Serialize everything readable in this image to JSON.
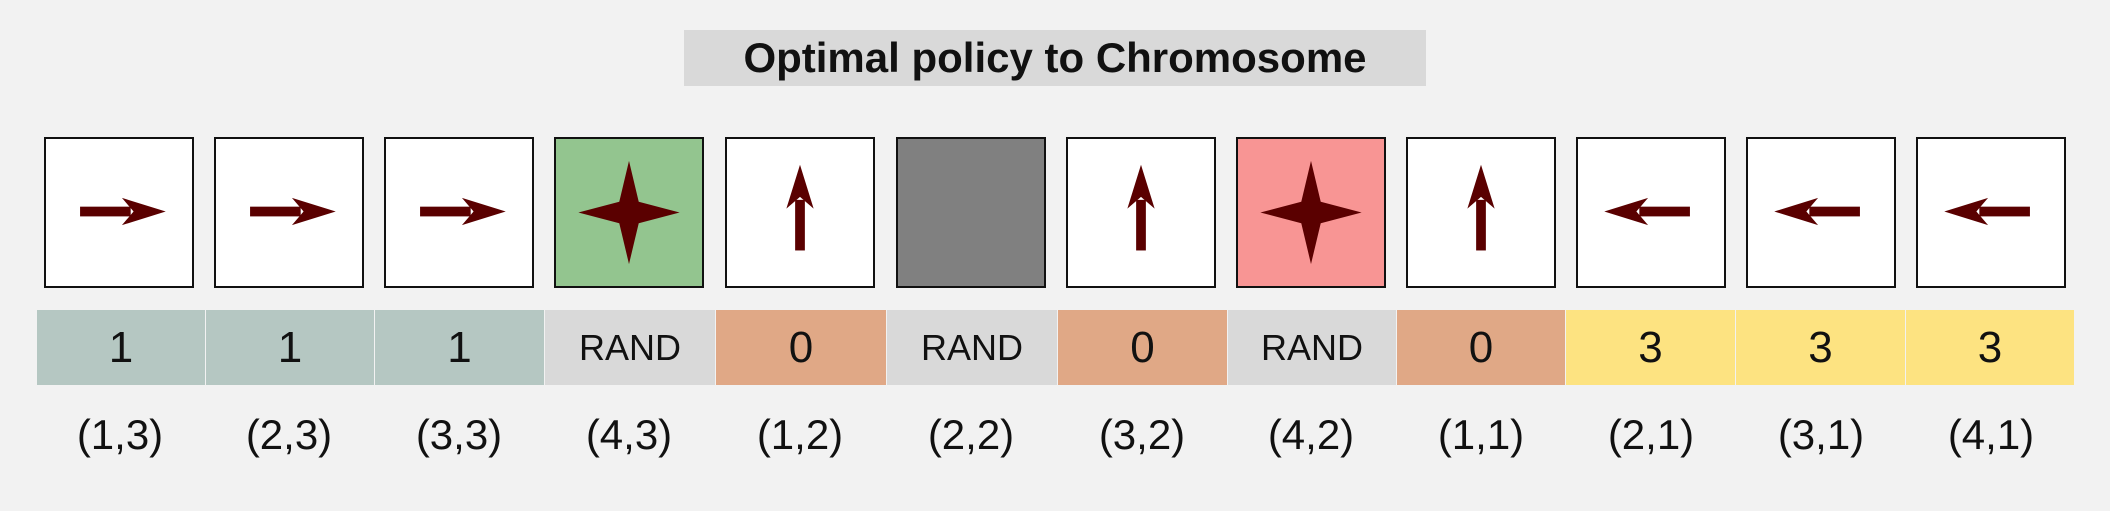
{
  "title": "Optimal policy to Chromosome",
  "colors": {
    "background": "#f2f2f2",
    "title_box": "#d9d9d9",
    "cell_default": "#ffffff",
    "cell_goal": "#93c58f",
    "cell_pit": "#f89594",
    "cell_wall": "#808080",
    "glyph": "#5a0000",
    "gene_right": "#b5c7c2",
    "gene_up": "#e0a886",
    "gene_left": "#fde381",
    "gene_rand": "#d9d9d9"
  },
  "states": [
    {
      "policy": "right-arrow-icon",
      "cell": "cell_default",
      "gene": "1",
      "gene_color": "gene_right",
      "coord": "(1,3)"
    },
    {
      "policy": "right-arrow-icon",
      "cell": "cell_default",
      "gene": "1",
      "gene_color": "gene_right",
      "coord": "(2,3)"
    },
    {
      "policy": "right-arrow-icon",
      "cell": "cell_default",
      "gene": "1",
      "gene_color": "gene_right",
      "coord": "(3,3)"
    },
    {
      "policy": "star-icon",
      "cell": "cell_goal",
      "gene": "RAND",
      "gene_color": "gene_rand",
      "coord": "(4,3)"
    },
    {
      "policy": "up-arrow-icon",
      "cell": "cell_default",
      "gene": "0",
      "gene_color": "gene_up",
      "coord": "(1,2)"
    },
    {
      "policy": "",
      "cell": "cell_wall",
      "gene": "RAND",
      "gene_color": "gene_rand",
      "coord": "(2,2)"
    },
    {
      "policy": "up-arrow-icon",
      "cell": "cell_default",
      "gene": "0",
      "gene_color": "gene_up",
      "coord": "(3,2)"
    },
    {
      "policy": "star-icon",
      "cell": "cell_pit",
      "gene": "RAND",
      "gene_color": "gene_rand",
      "coord": "(4,2)"
    },
    {
      "policy": "up-arrow-icon",
      "cell": "cell_default",
      "gene": "0",
      "gene_color": "gene_up",
      "coord": "(1,1)"
    },
    {
      "policy": "left-arrow-icon",
      "cell": "cell_default",
      "gene": "3",
      "gene_color": "gene_left",
      "coord": "(2,1)"
    },
    {
      "policy": "left-arrow-icon",
      "cell": "cell_default",
      "gene": "3",
      "gene_color": "gene_left",
      "coord": "(3,1)"
    },
    {
      "policy": "left-arrow-icon",
      "cell": "cell_default",
      "gene": "3",
      "gene_color": "gene_left",
      "coord": "(4,1)"
    }
  ]
}
